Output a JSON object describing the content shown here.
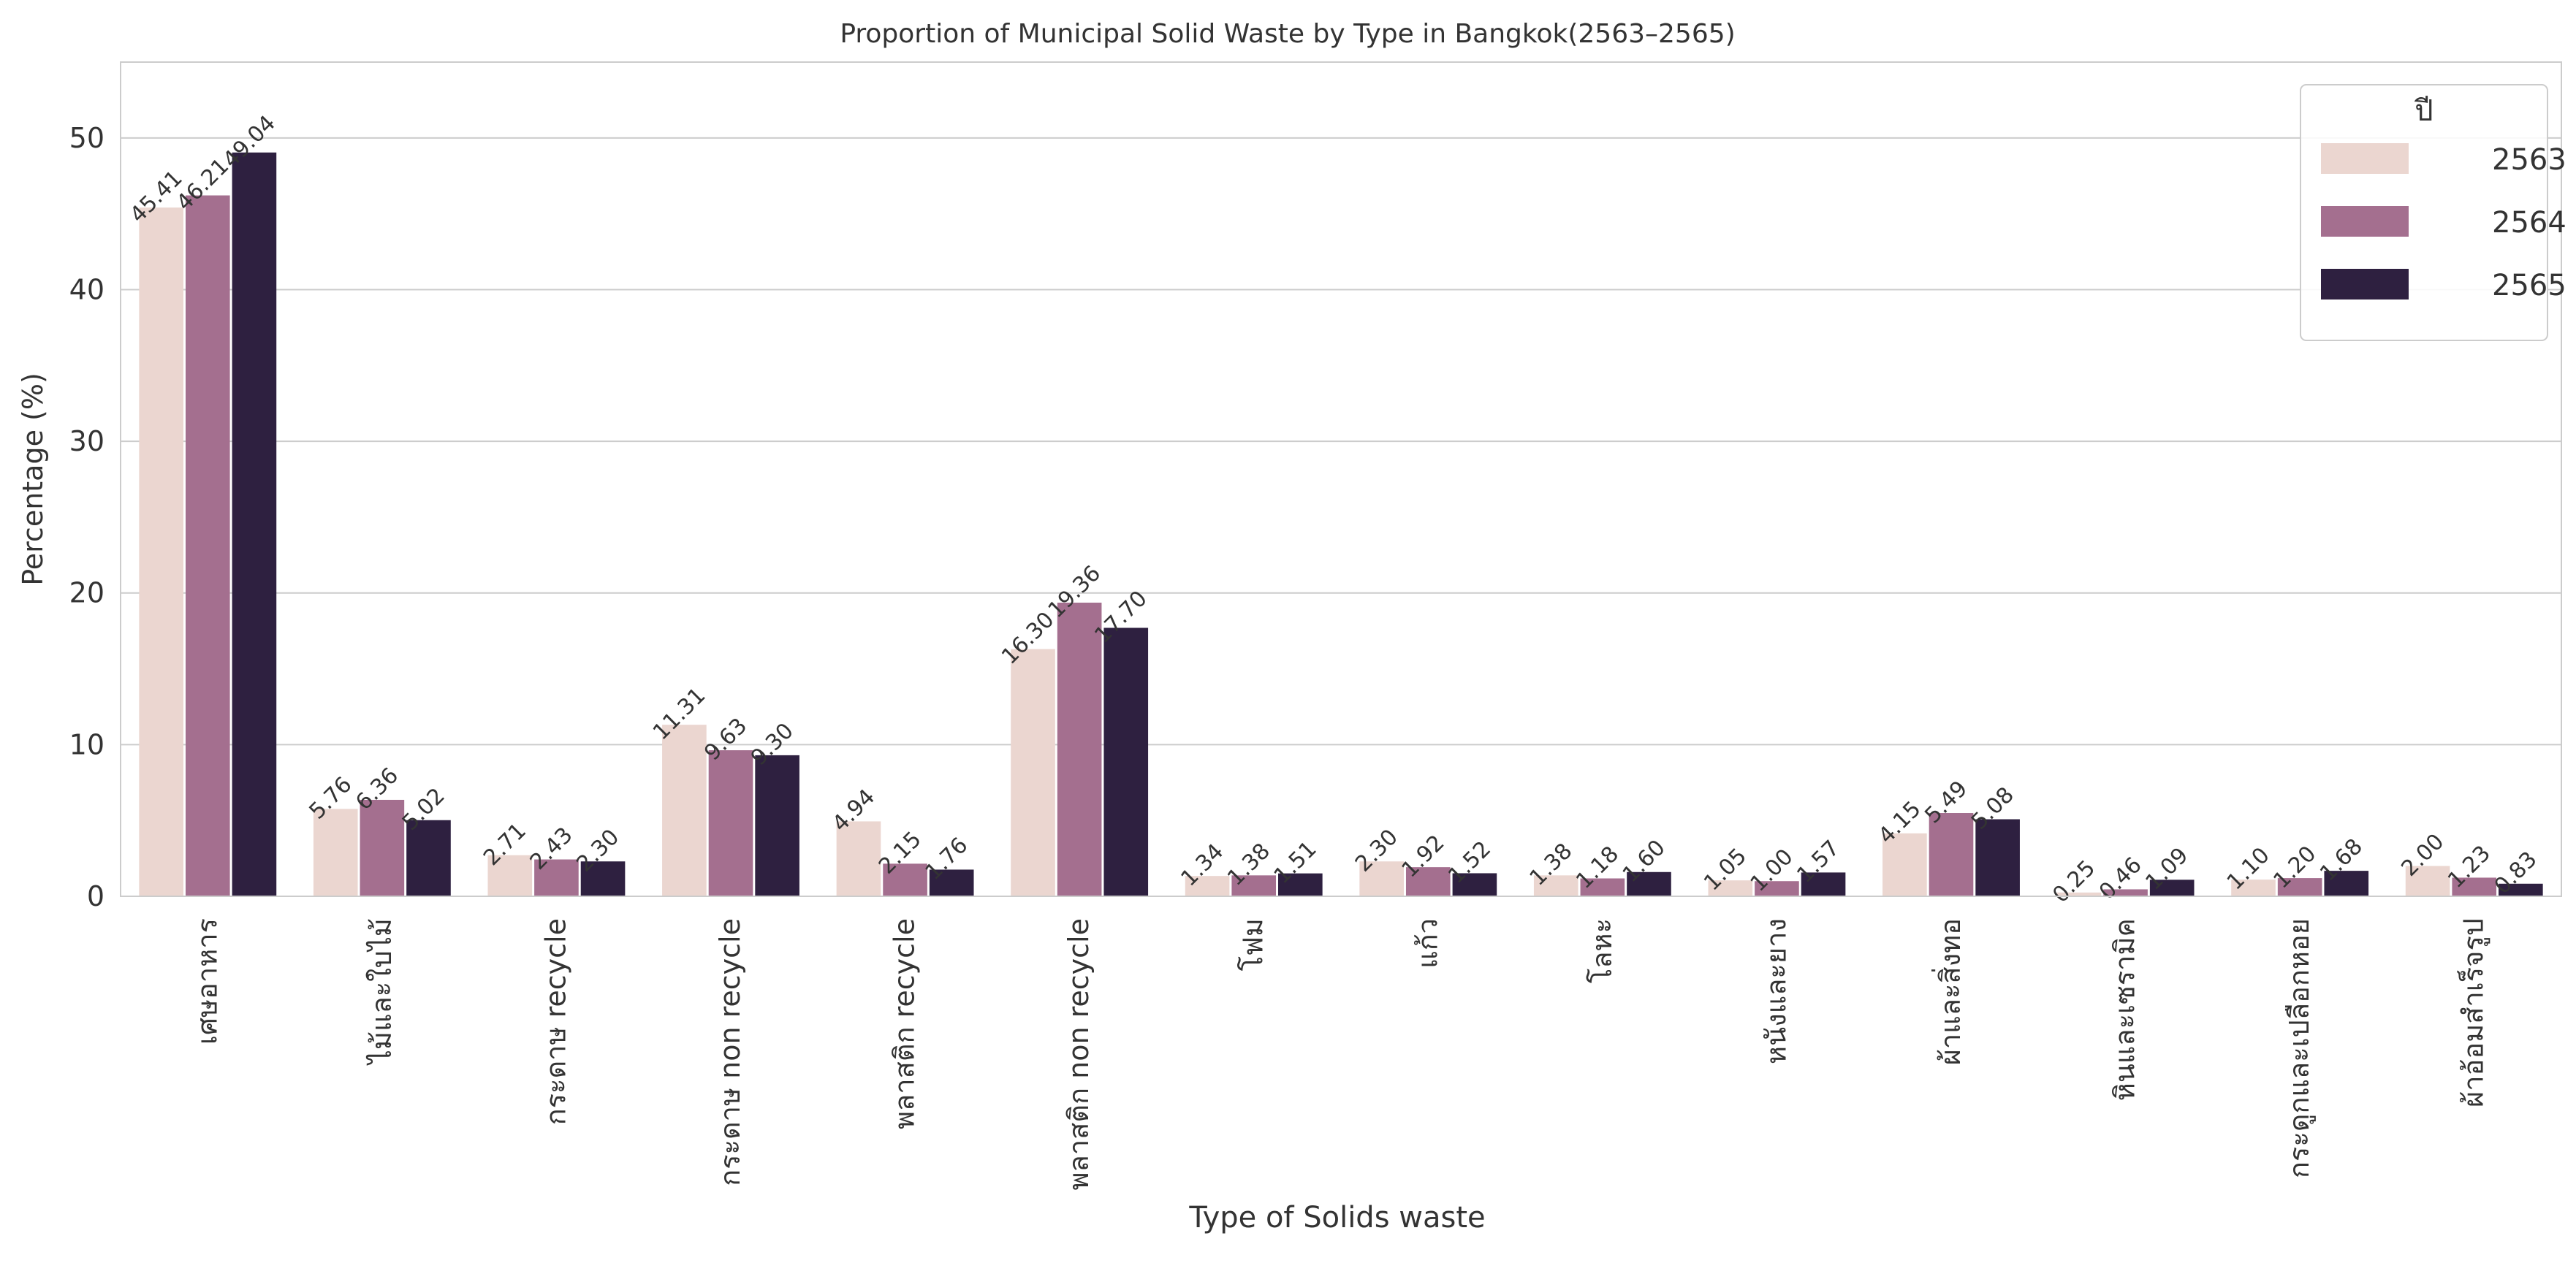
{
  "chart_data": {
    "type": "bar",
    "title": "Proportion of Municipal Solid Waste by Type in Bangkok(2563–2565)",
    "xlabel": "Type of Solids waste",
    "ylabel": "Percentage (%)",
    "ylim": [
      0,
      55
    ],
    "yticks": [
      0,
      10,
      20,
      30,
      40,
      50
    ],
    "grid": true,
    "legend": {
      "title": "ปี",
      "placement": "top-right"
    },
    "categories": [
      "เศษอาหาร",
      "ไม้และใบไม้",
      "กระดาษ recycle",
      "กระดาษ non recycle",
      "พลาสติก recycle",
      "พลาสติก non recycle",
      "โฟม",
      "แก้ว",
      "โลหะ",
      "หนังและยาง",
      "ผ้าและสิ่งทอ",
      "หินและเซรามิค",
      "กระดูกและเปลือกหอย",
      "ผ้าอ้อมสำเร็จรูป"
    ],
    "series": [
      {
        "name": "2563",
        "color": "#ebd6d0",
        "values": [
          45.41,
          5.76,
          2.71,
          11.31,
          4.94,
          16.3,
          1.34,
          2.3,
          1.38,
          1.05,
          4.15,
          0.25,
          1.1,
          2.0
        ],
        "labels": [
          "45.41",
          "5.76",
          "2.71",
          "11.31",
          "4.94",
          "16.30",
          "1.34",
          "2.30",
          "1.38",
          "1.05",
          "4.15",
          "0.25",
          "1.10",
          "2.00"
        ]
      },
      {
        "name": "2564",
        "color": "#a46f8f",
        "values": [
          46.21,
          6.36,
          2.43,
          9.63,
          2.15,
          19.36,
          1.38,
          1.92,
          1.18,
          1.0,
          5.49,
          0.46,
          1.2,
          1.23
        ],
        "labels": [
          "46.21",
          "6.36",
          "2.43",
          "9.63",
          "2.15",
          "19.36",
          "1.38",
          "1.92",
          "1.18",
          "1.00",
          "5.49",
          "0.46",
          "1.20",
          "1.23"
        ]
      },
      {
        "name": "2565",
        "color": "#2e2040",
        "values": [
          49.04,
          5.02,
          2.3,
          9.3,
          1.76,
          17.7,
          1.51,
          1.52,
          1.6,
          1.57,
          5.08,
          1.09,
          1.68,
          0.83
        ],
        "labels": [
          "49.04",
          "5.02",
          "2.30",
          "9.30",
          "1.76",
          "17.70",
          "1.51",
          "1.52",
          "1.60",
          "1.57",
          "5.08",
          "1.09",
          "1.68",
          "0.83"
        ]
      }
    ]
  }
}
